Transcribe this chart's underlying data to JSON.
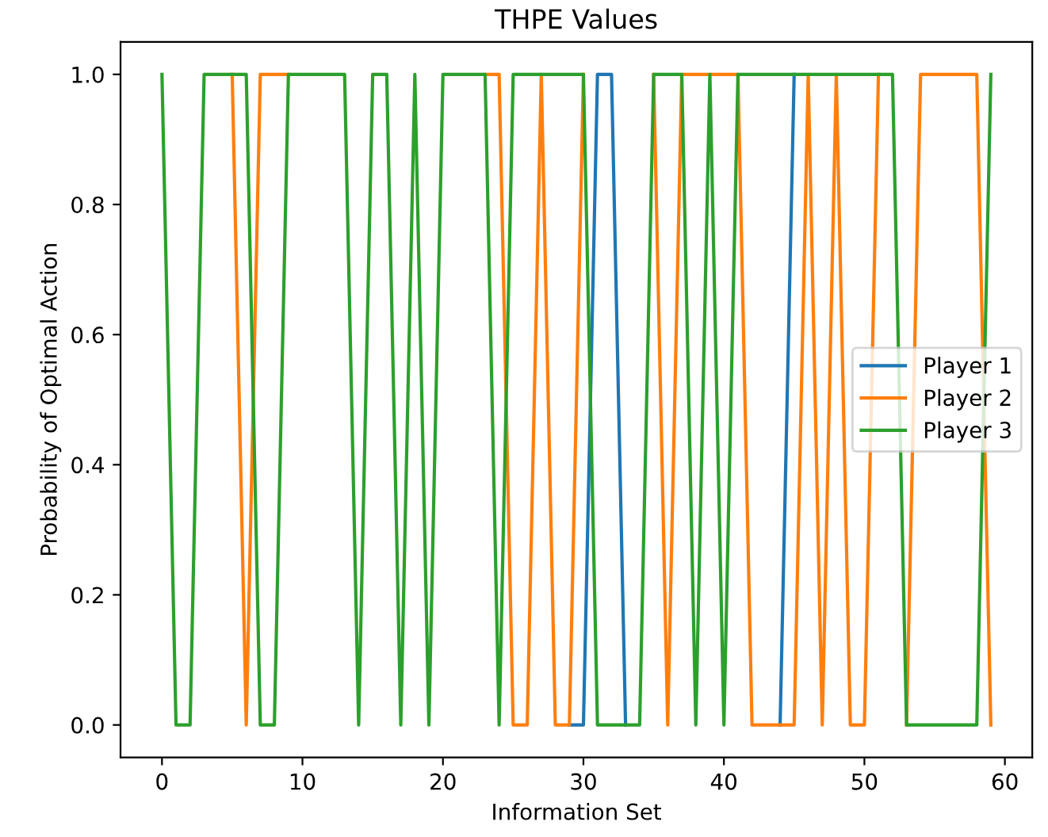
{
  "chart_data": {
    "type": "line",
    "title": "THPE Values",
    "xlabel": "Information Set",
    "ylabel": "Probability of Optimal Action",
    "x": [
      0,
      1,
      2,
      3,
      4,
      5,
      6,
      7,
      8,
      9,
      10,
      11,
      12,
      13,
      14,
      15,
      16,
      17,
      18,
      19,
      20,
      21,
      22,
      23,
      24,
      25,
      26,
      27,
      28,
      29,
      30,
      31,
      32,
      33,
      34,
      35,
      36,
      37,
      38,
      39,
      40,
      41,
      42,
      43,
      44,
      45,
      46,
      47,
      48,
      49,
      50,
      51,
      52,
      53,
      54,
      55,
      56,
      57,
      58,
      59
    ],
    "series": [
      {
        "name": "Player 1",
        "color": "#1f77b4",
        "values": [
          null,
          null,
          null,
          null,
          null,
          null,
          null,
          null,
          null,
          null,
          null,
          null,
          null,
          null,
          null,
          null,
          null,
          null,
          null,
          null,
          null,
          null,
          null,
          null,
          null,
          null,
          null,
          null,
          null,
          0,
          0,
          1,
          1,
          0,
          null,
          null,
          null,
          null,
          null,
          null,
          null,
          null,
          null,
          null,
          0,
          1,
          null,
          null,
          null,
          null,
          null,
          null,
          null,
          null,
          null,
          null,
          null,
          null,
          null,
          null
        ]
      },
      {
        "name": "Player 2",
        "color": "#ff7f0e",
        "values": [
          null,
          null,
          null,
          null,
          null,
          1,
          0,
          1,
          1,
          1,
          null,
          null,
          null,
          null,
          null,
          null,
          null,
          null,
          null,
          null,
          null,
          null,
          null,
          1,
          1,
          0,
          0,
          1,
          0,
          0,
          1,
          null,
          null,
          null,
          null,
          1,
          0,
          1,
          1,
          1,
          1,
          1,
          0,
          0,
          0,
          0,
          1,
          0,
          1,
          0,
          0,
          1,
          null,
          0,
          1,
          1,
          1,
          1,
          1,
          0
        ]
      },
      {
        "name": "Player 3",
        "color": "#2ca02c",
        "values": [
          1,
          0,
          0,
          1,
          1,
          1,
          1,
          0,
          0,
          1,
          1,
          1,
          1,
          1,
          0,
          1,
          1,
          0,
          1,
          0,
          1,
          1,
          1,
          1,
          0,
          1,
          1,
          1,
          1,
          1,
          1,
          0,
          0,
          0,
          0,
          1,
          1,
          1,
          0,
          1,
          0,
          1,
          1,
          1,
          1,
          1,
          1,
          1,
          1,
          1,
          1,
          1,
          1,
          0,
          0,
          0,
          0,
          0,
          0,
          1
        ]
      }
    ],
    "xlim": [
      -2.95,
      61.95
    ],
    "ylim": [
      -0.05,
      1.05
    ],
    "xticks": [
      0,
      10,
      20,
      30,
      40,
      50,
      60
    ],
    "yticks": [
      {
        "value": 0,
        "label": "0.0"
      },
      {
        "value": 0.2,
        "label": "0.2"
      },
      {
        "value": 0.4,
        "label": "0.4"
      },
      {
        "value": 0.6,
        "label": "0.6"
      },
      {
        "value": 0.8,
        "label": "0.8"
      },
      {
        "value": 1,
        "label": "1.0"
      }
    ],
    "legend": "center right",
    "grid": false
  }
}
